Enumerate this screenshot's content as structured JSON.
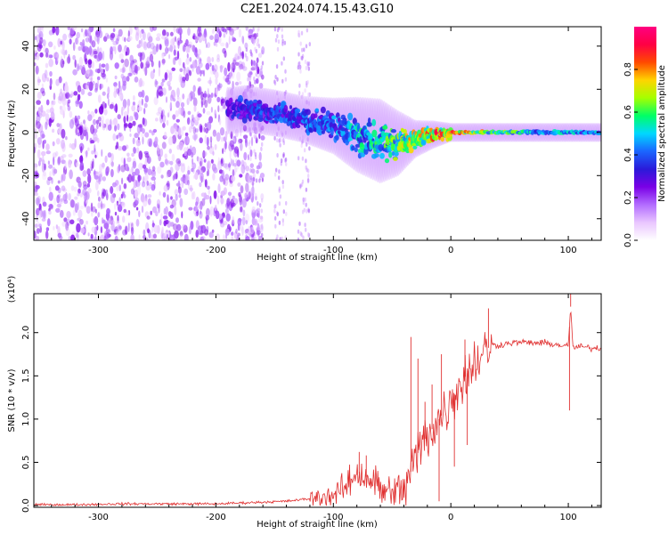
{
  "figure_title": "C2E1.2024.074.15.43.G10",
  "chart_data": [
    {
      "type": "heatmap",
      "name": "spectrogram",
      "xlabel": "Height of straight line (km)",
      "ylabel": "Frequency (Hz)",
      "xlim": [
        -355,
        128
      ],
      "ylim": [
        -50,
        49
      ],
      "x_ticks": [
        -300,
        -200,
        -100,
        0,
        100
      ],
      "y_ticks": [
        -40,
        -20,
        0,
        20,
        40
      ],
      "colorbar": {
        "label": "Normalized spectral amplitude",
        "range": [
          0,
          1
        ],
        "ticks": [
          0.0,
          0.2,
          0.4,
          0.6,
          0.8
        ],
        "colors": [
          "#ffffff",
          "#e9c6ff",
          "#b26bff",
          "#7a00e6",
          "#2a1ad9",
          "#1a66ff",
          "#00d8ff",
          "#00ff66",
          "#a6ff00",
          "#ffd400",
          "#ff4a00",
          "#ff0044",
          "#ff0080"
        ]
      },
      "signal_trace": {
        "height_km": [
          -190,
          -175,
          -150,
          -125,
          -100,
          -80,
          -60,
          -45,
          -30,
          -15,
          0,
          40,
          80,
          128
        ],
        "center_hz": [
          10,
          11,
          9,
          6,
          3,
          -1,
          -4,
          -5,
          -3,
          -1,
          0,
          0,
          0,
          0
        ],
        "spread_hz": [
          5,
          5,
          5,
          5,
          6,
          8,
          9,
          7,
          4,
          3,
          2,
          2,
          2,
          2
        ],
        "amplitude": [
          0.35,
          0.4,
          0.42,
          0.45,
          0.48,
          0.55,
          0.6,
          0.7,
          0.8,
          0.88,
          0.95,
          0.7,
          0.55,
          0.5
        ]
      }
    },
    {
      "type": "line",
      "name": "snr",
      "xlabel": "Height of straight line (km)",
      "ylabel": "SNR (10 * v/v)",
      "scale_label": "(x10⁴)",
      "xlim": [
        -355,
        128
      ],
      "ylim": [
        -0.02,
        2.45
      ],
      "x_ticks": [
        -300,
        -200,
        -100,
        0,
        100
      ],
      "y_ticks": [
        0.0,
        0.5,
        1.0,
        1.5,
        2.0
      ],
      "color": "#e03030",
      "x": [
        -355,
        -320,
        -280,
        -240,
        -200,
        -180,
        -160,
        -140,
        -120,
        -100,
        -90,
        -80,
        -70,
        -60,
        -50,
        -40,
        -35,
        -30,
        -25,
        -20,
        -15,
        -10,
        -5,
        0,
        5,
        10,
        15,
        20,
        25,
        30,
        35,
        40,
        50,
        60,
        70,
        80,
        90,
        95,
        100,
        102,
        104,
        110,
        120,
        128
      ],
      "y": [
        0.01,
        0.01,
        0.02,
        0.02,
        0.02,
        0.03,
        0.04,
        0.05,
        0.08,
        0.12,
        0.2,
        0.38,
        0.32,
        0.2,
        0.1,
        0.18,
        0.35,
        0.55,
        0.7,
        0.82,
        0.9,
        1.0,
        1.1,
        1.2,
        1.35,
        1.45,
        1.55,
        1.65,
        1.72,
        1.8,
        1.86,
        1.85,
        1.88,
        1.89,
        1.88,
        1.88,
        1.86,
        1.85,
        1.84,
        2.3,
        1.82,
        1.84,
        1.82,
        1.82
      ],
      "spikes": [
        {
          "x": -78,
          "y": 0.62
        },
        {
          "x": -72,
          "y": 0.58
        },
        {
          "x": -34,
          "y": 1.95
        },
        {
          "x": -28,
          "y": 1.7
        },
        {
          "x": -22,
          "y": 1.2
        },
        {
          "x": -16,
          "y": 1.4
        },
        {
          "x": -8,
          "y": 1.75
        },
        {
          "x": 12,
          "y": 1.92
        },
        {
          "x": 32,
          "y": 2.28
        },
        {
          "x": 102,
          "y": 2.45
        },
        {
          "x": 101,
          "y": 1.1
        },
        {
          "x": -10,
          "y": 0.05
        },
        {
          "x": 3,
          "y": 0.45
        },
        {
          "x": 14,
          "y": 0.7
        }
      ]
    }
  ]
}
